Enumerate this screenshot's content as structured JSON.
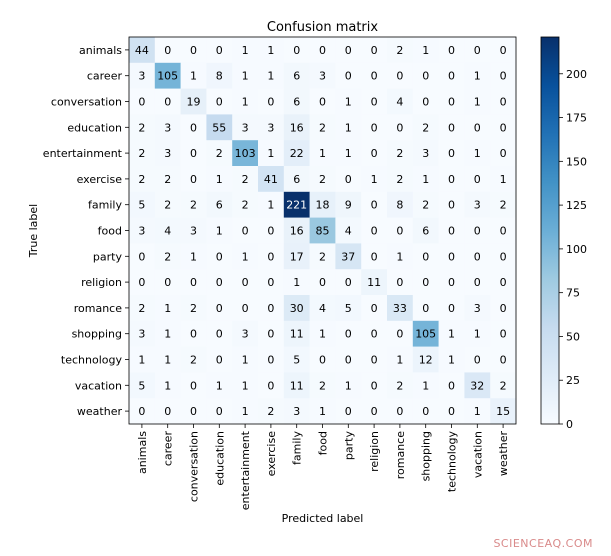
{
  "chart_data": {
    "type": "heatmap",
    "title": "Confusion matrix",
    "xlabel": "Predicted label",
    "ylabel": "True label",
    "labels": [
      "animals",
      "career",
      "conversation",
      "education",
      "entertainment",
      "exercise",
      "family",
      "food",
      "party",
      "religion",
      "romance",
      "shopping",
      "technology",
      "vacation",
      "weather"
    ],
    "matrix": [
      [
        44,
        0,
        0,
        0,
        1,
        1,
        0,
        0,
        0,
        0,
        2,
        1,
        0,
        0,
        0
      ],
      [
        3,
        105,
        1,
        8,
        1,
        1,
        6,
        3,
        0,
        0,
        0,
        0,
        0,
        1,
        0
      ],
      [
        0,
        0,
        19,
        0,
        1,
        0,
        6,
        0,
        1,
        0,
        4,
        0,
        0,
        1,
        0
      ],
      [
        2,
        3,
        0,
        55,
        3,
        3,
        16,
        2,
        1,
        0,
        0,
        2,
        0,
        0,
        0
      ],
      [
        2,
        3,
        0,
        2,
        103,
        1,
        22,
        1,
        1,
        0,
        2,
        3,
        0,
        1,
        0
      ],
      [
        2,
        2,
        0,
        1,
        2,
        41,
        6,
        2,
        0,
        1,
        2,
        1,
        0,
        0,
        1
      ],
      [
        5,
        2,
        2,
        6,
        2,
        1,
        221,
        18,
        9,
        0,
        8,
        2,
        0,
        3,
        2
      ],
      [
        3,
        4,
        3,
        1,
        0,
        0,
        16,
        85,
        4,
        0,
        0,
        6,
        0,
        0,
        0
      ],
      [
        0,
        2,
        1,
        0,
        1,
        0,
        17,
        2,
        37,
        0,
        1,
        0,
        0,
        0,
        0
      ],
      [
        0,
        0,
        0,
        0,
        0,
        0,
        1,
        0,
        0,
        11,
        0,
        0,
        0,
        0,
        0
      ],
      [
        2,
        1,
        2,
        0,
        0,
        0,
        30,
        4,
        5,
        0,
        33,
        0,
        0,
        3,
        0
      ],
      [
        3,
        1,
        0,
        0,
        3,
        0,
        11,
        1,
        0,
        0,
        0,
        105,
        1,
        1,
        0
      ],
      [
        1,
        1,
        2,
        0,
        1,
        0,
        5,
        0,
        0,
        0,
        1,
        12,
        1,
        0,
        0
      ],
      [
        5,
        1,
        0,
        1,
        1,
        0,
        11,
        2,
        1,
        0,
        2,
        1,
        0,
        32,
        2
      ],
      [
        0,
        0,
        0,
        0,
        1,
        2,
        3,
        1,
        0,
        0,
        0,
        0,
        0,
        1,
        15
      ]
    ],
    "colorbar": {
      "range": [
        0,
        221
      ],
      "ticks": [
        0,
        25,
        50,
        75,
        100,
        125,
        150,
        175,
        200
      ],
      "colormap": "Blues",
      "colors": [
        "#f7fbff",
        "#deebf7",
        "#c6dbef",
        "#9ecae1",
        "#6baed6",
        "#4292c6",
        "#2171b5",
        "#08519c",
        "#08306b"
      ]
    }
  },
  "watermark": "SCIENCEAQ.COM"
}
